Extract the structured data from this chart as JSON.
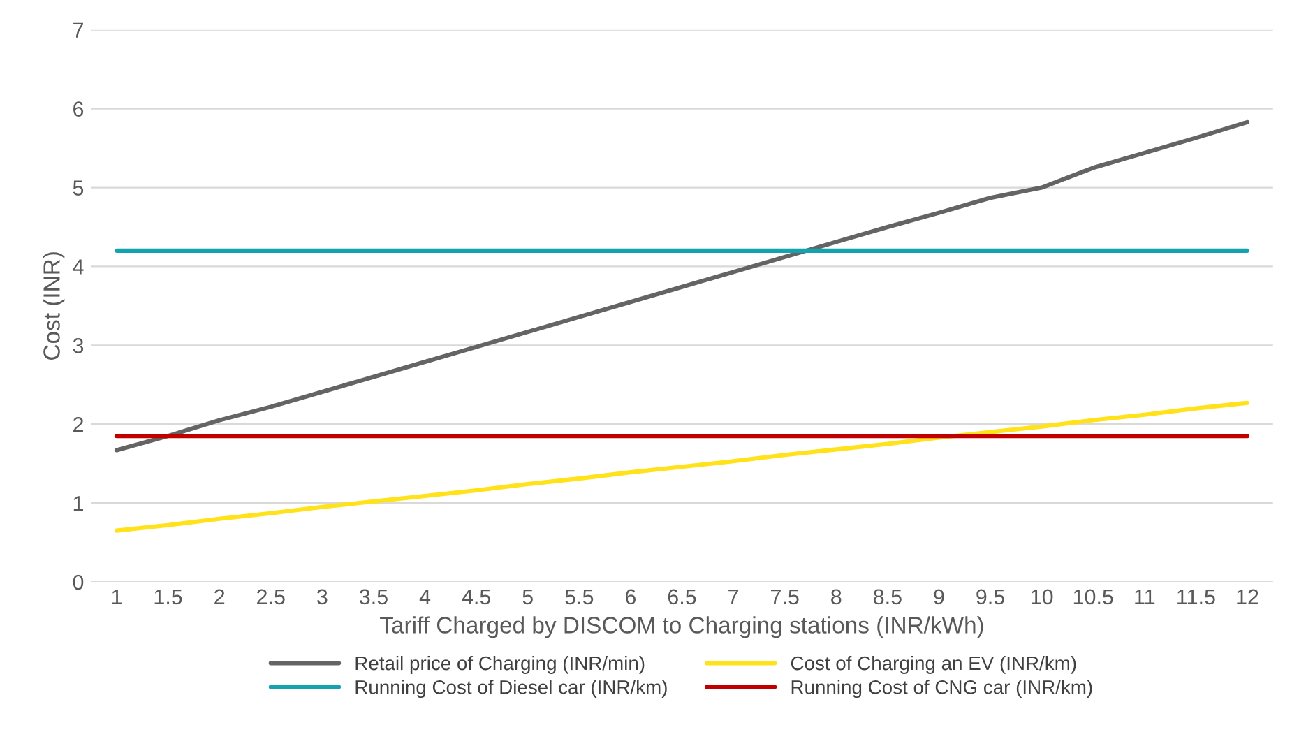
{
  "chart_data": {
    "type": "line",
    "xlabel": "Tariff Charged by DISCOM to Charging stations (INR/kWh)",
    "ylabel": "Cost (INR)",
    "categories": [
      "1",
      "1.5",
      "2",
      "2.5",
      "3",
      "3.5",
      "4",
      "4.5",
      "5",
      "5.5",
      "6",
      "6.5",
      "7",
      "7.5",
      "8",
      "8.5",
      "9",
      "9.5",
      "10",
      "10.5",
      "11",
      "11.5",
      "12"
    ],
    "series": [
      {
        "name": "Retail price of Charging (INR/min)",
        "color": "#646464",
        "values": [
          1.67,
          1.85,
          2.05,
          2.22,
          2.41,
          2.6,
          2.79,
          2.98,
          3.17,
          3.36,
          3.55,
          3.74,
          3.93,
          4.12,
          4.31,
          4.5,
          4.68,
          4.87,
          5.0,
          5.25,
          5.44,
          5.63,
          5.83
        ]
      },
      {
        "name": "Cost of Charging an EV (INR/km)",
        "color": "#ffe21a",
        "values": [
          0.65,
          0.72,
          0.8,
          0.87,
          0.95,
          1.02,
          1.09,
          1.16,
          1.24,
          1.31,
          1.39,
          1.46,
          1.53,
          1.61,
          1.68,
          1.75,
          1.83,
          1.9,
          1.97,
          2.05,
          2.12,
          2.2,
          2.27
        ]
      },
      {
        "name": "Running Cost of Diesel car (INR/km)",
        "color": "#15a2b0",
        "values": [
          4.2,
          4.2,
          4.2,
          4.2,
          4.2,
          4.2,
          4.2,
          4.2,
          4.2,
          4.2,
          4.2,
          4.2,
          4.2,
          4.2,
          4.2,
          4.2,
          4.2,
          4.2,
          4.2,
          4.2,
          4.2,
          4.2,
          4.2
        ]
      },
      {
        "name": "Running Cost of CNG car (INR/km)",
        "color": "#c00000",
        "values": [
          1.85,
          1.85,
          1.85,
          1.85,
          1.85,
          1.85,
          1.85,
          1.85,
          1.85,
          1.85,
          1.85,
          1.85,
          1.85,
          1.85,
          1.85,
          1.85,
          1.85,
          1.85,
          1.85,
          1.85,
          1.85,
          1.85,
          1.85
        ]
      }
    ],
    "ylim": [
      0,
      7
    ],
    "yticks": [
      0,
      1,
      2,
      3,
      4,
      5,
      6,
      7
    ],
    "grid": "y",
    "legend": "bottom",
    "marker": "none",
    "line_style": "solid"
  }
}
